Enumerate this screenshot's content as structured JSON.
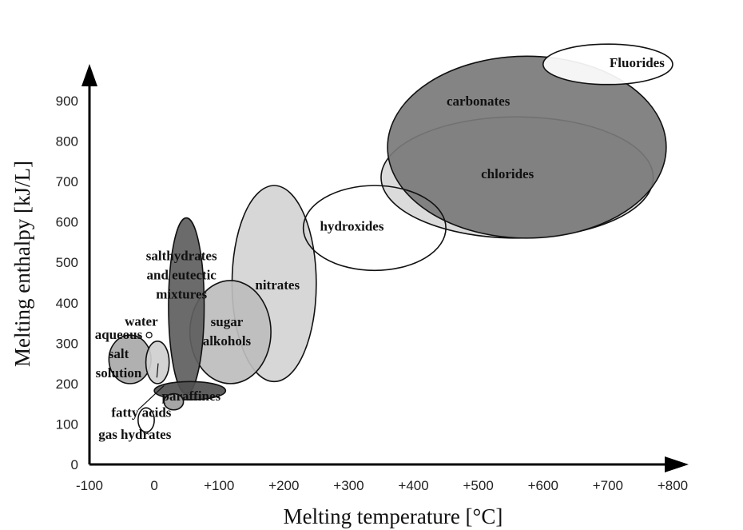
{
  "chart_data": {
    "type": "scatter",
    "title": "",
    "xlabel": "Melting temperature [°C]",
    "ylabel": "Melting enthalpy [kJ/L]",
    "xlim": [
      -100,
      800
    ],
    "ylim": [
      0,
      900
    ],
    "grid": false,
    "x_ticks": [
      {
        "value": -100,
        "label": "-100"
      },
      {
        "value": 0,
        "label": "0"
      },
      {
        "value": 100,
        "label": "+100"
      },
      {
        "value": 200,
        "label": "+200"
      },
      {
        "value": 300,
        "label": "+300"
      },
      {
        "value": 400,
        "label": "+400"
      },
      {
        "value": 500,
        "label": "+500"
      },
      {
        "value": 600,
        "label": "+600"
      },
      {
        "value": 700,
        "label": "+700"
      },
      {
        "value": 800,
        "label": "+800"
      }
    ],
    "y_ticks": [
      {
        "value": 0,
        "label": "0"
      },
      {
        "value": 100,
        "label": "100"
      },
      {
        "value": 200,
        "label": "200"
      },
      {
        "value": 300,
        "label": "300"
      },
      {
        "value": 400,
        "label": "400"
      },
      {
        "value": 500,
        "label": "500"
      },
      {
        "value": 600,
        "label": "600"
      },
      {
        "value": 700,
        "label": "700"
      },
      {
        "value": 800,
        "label": "800"
      },
      {
        "value": 900,
        "label": "900"
      }
    ],
    "regions": [
      {
        "id": "chlorides",
        "label": "chlorides",
        "x_range": [
          350,
          770
        ],
        "y_range": [
          560,
          860
        ],
        "fill": "#d8d8d8",
        "label_at": [
          545,
          720
        ]
      },
      {
        "id": "carbonates",
        "label": "carbonates",
        "x_range": [
          360,
          790
        ],
        "y_range": [
          560,
          1010
        ],
        "fill": "#7a7a7a",
        "label_at": [
          500,
          900
        ]
      },
      {
        "id": "fluorides",
        "label": "Fluorides",
        "x_range": [
          600,
          800
        ],
        "y_range": [
          940,
          1040
        ],
        "fill": "#ffffff",
        "label_at": [
          745,
          995
        ]
      },
      {
        "id": "nitrates",
        "label": "nitrates",
        "x_range": [
          120,
          250
        ],
        "y_range": [
          205,
          690
        ],
        "fill": "#d4d4d4",
        "label_at": [
          190,
          445
        ]
      },
      {
        "id": "hydroxides",
        "label": "hydroxides",
        "x_range": [
          230,
          450
        ],
        "y_range": [
          480,
          690
        ],
        "fill": "none",
        "label_at": [
          305,
          590
        ]
      },
      {
        "id": "sugar-alcohols",
        "label": [
          "sugar",
          "alkohols"
        ],
        "x_range": [
          55,
          180
        ],
        "y_range": [
          200,
          455
        ],
        "fill": "#bdbdbd",
        "label_at": [
          112,
          330
        ]
      },
      {
        "id": "salthydrates",
        "label": [
          "salthydrates",
          "and eutectic",
          "mixtures"
        ],
        "x_range": [
          22,
          77
        ],
        "y_range": [
          175,
          610
        ],
        "fill": "#5e5e5e",
        "label_at": [
          42,
          470
        ]
      },
      {
        "id": "aqueous-salt-solution",
        "label": [
          "aqueous",
          "salt",
          "solution"
        ],
        "x_range": [
          -70,
          -5
        ],
        "y_range": [
          200,
          320
        ],
        "fill": "#a9a9a9",
        "label_at": [
          -55,
          275
        ]
      },
      {
        "id": "water",
        "label": "water",
        "x_range": [
          -13,
          23
        ],
        "y_range": [
          200,
          305
        ],
        "fill": "#cfcfcf",
        "label_at": [
          -20,
          355
        ]
      },
      {
        "id": "paraffines",
        "label": "paraffines",
        "x_range": [
          0,
          110
        ],
        "y_range": [
          160,
          205
        ],
        "fill": "#505050",
        "label_at": [
          57,
          170
        ]
      },
      {
        "id": "fatty-acids",
        "label": "fatty acids",
        "x_range": [
          15,
          45
        ],
        "y_range": [
          135,
          175
        ],
        "fill": "#9e9e9e",
        "label_at": [
          -20,
          130
        ]
      },
      {
        "id": "gas-hydrates",
        "label": "gas hydrates",
        "x_range": [
          -25,
          0
        ],
        "y_range": [
          80,
          140
        ],
        "fill": "none",
        "label_at": [
          -30,
          75
        ]
      }
    ]
  }
}
